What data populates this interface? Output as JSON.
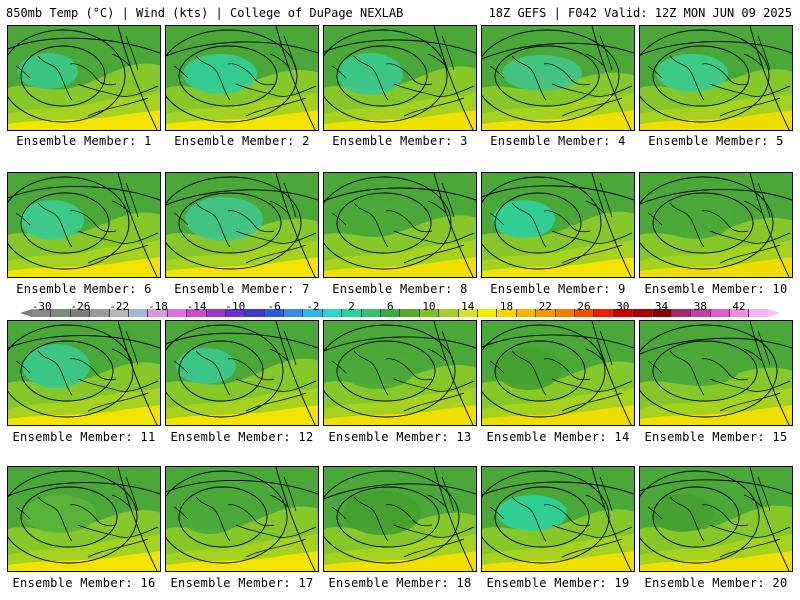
{
  "header": {
    "left": "850mb Temp (°C) | Wind (kts) | College of DuPage NEXLAB",
    "right": "18Z GEFS | F042 Valid: 12Z MON JUN 09 2025"
  },
  "members": [
    {
      "caption": "Ensemble Member: 1",
      "cold": "#38c98a",
      "warm": "#f2e400"
    },
    {
      "caption": "Ensemble Member: 2",
      "cold": "#32cf98",
      "warm": "#f2e400"
    },
    {
      "caption": "Ensemble Member: 3",
      "cold": "#3ac890",
      "warm": "#f0e000"
    },
    {
      "caption": "Ensemble Member: 4",
      "cold": "#44c488",
      "warm": "#f0df00"
    },
    {
      "caption": "Ensemble Member: 5",
      "cold": "#3ccc92",
      "warm": "#eedd00"
    },
    {
      "caption": "Ensemble Member: 6",
      "cold": "#3ccc92",
      "warm": "#f2e400"
    },
    {
      "caption": "Ensemble Member: 7",
      "cold": "#40c68c",
      "warm": "#f2e400"
    },
    {
      "caption": "Ensemble Member: 8",
      "cold": "#4aa838",
      "warm": "#efe000"
    },
    {
      "caption": "Ensemble Member: 9",
      "cold": "#2ed29c",
      "warm": "#f2e400"
    },
    {
      "caption": "Ensemble Member: 10",
      "cold": "#4aa838",
      "warm": "#eedd00"
    },
    {
      "caption": "Ensemble Member: 11",
      "cold": "#3ac890",
      "warm": "#f2e400"
    },
    {
      "caption": "Ensemble Member: 12",
      "cold": "#3cc890",
      "warm": "#f2e400"
    },
    {
      "caption": "Ensemble Member: 13",
      "cold": "#4aa838",
      "warm": "#f0e000"
    },
    {
      "caption": "Ensemble Member: 14",
      "cold": "#44a030",
      "warm": "#eedd00"
    },
    {
      "caption": "Ensemble Member: 15",
      "cold": "#4aa838",
      "warm": "#f0e000"
    },
    {
      "caption": "Ensemble Member: 16",
      "cold": "#5ab43c",
      "warm": "#f2e400"
    },
    {
      "caption": "Ensemble Member: 17",
      "cold": "#4aa838",
      "warm": "#f2e400"
    },
    {
      "caption": "Ensemble Member: 18",
      "cold": "#44a030",
      "warm": "#f0e000"
    },
    {
      "caption": "Ensemble Member: 19",
      "cold": "#2ed29c",
      "warm": "#f0e000"
    },
    {
      "caption": "Ensemble Member: 20",
      "cold": "#44a030",
      "warm": "#f0e000"
    }
  ],
  "colorbar": {
    "labels": [
      "-30",
      "-26",
      "-22",
      "-18",
      "-14",
      "-10",
      "-6",
      "-2",
      "2",
      "6",
      "10",
      "14",
      "18",
      "22",
      "26",
      "30",
      "34",
      "38",
      "42"
    ],
    "colors": [
      "#8a8a8a",
      "#7a8c7a",
      "#7c7c7c",
      "#9a9a9a",
      "#b6b6b6",
      "#a8b6d6",
      "#d79ad7",
      "#e070e0",
      "#cc4acc",
      "#9b35c4",
      "#6a2fd0",
      "#3a3ad0",
      "#2a5ae0",
      "#3a8ae8",
      "#2cb4e8",
      "#2ad4d4",
      "#2ad2a0",
      "#36c070",
      "#3aa83a",
      "#5aa828",
      "#80c020",
      "#a4d21e",
      "#d8e22a",
      "#f0f000",
      "#f2d800",
      "#f4b800",
      "#f49a00",
      "#f47a00",
      "#f05000",
      "#e82000",
      "#d00000",
      "#aa0000",
      "#8a0000",
      "#a0286a",
      "#c040a0",
      "#dc60c8",
      "#f08ce6",
      "#f4b6f0"
    ]
  }
}
